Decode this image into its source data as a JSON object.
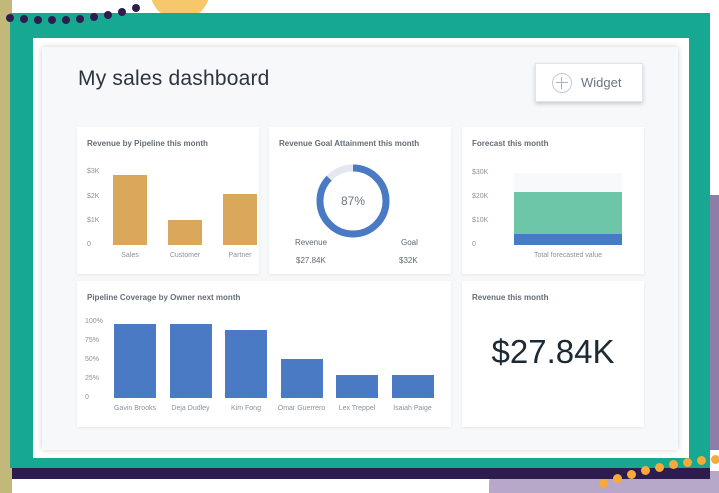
{
  "dashboard": {
    "title": "My sales dashboard",
    "widget_button": "Widget",
    "icons": [
      "plus-circle-icon"
    ]
  },
  "revenue_by_pipeline": {
    "title": "Revenue by Pipeline this month",
    "chart_data": {
      "type": "bar",
      "categories": [
        "Sales",
        "Customer",
        "Partner"
      ],
      "values": [
        2.9,
        1.05,
        2.1
      ],
      "yticks": [
        "$3K",
        "$2K",
        "$1K",
        "0"
      ],
      "ylim": [
        0,
        3.3
      ],
      "color": "#d9a85a"
    }
  },
  "goal_attainment": {
    "title": "Revenue Goal Attainment this month",
    "percent_label": "87%",
    "percent": 87,
    "revenue_label": "Revenue",
    "revenue_value": "$27.84K",
    "goal_label": "Goal",
    "goal_value": "$32K",
    "color": "#4a7ac4"
  },
  "forecast": {
    "title": "Forecast this month",
    "chart_data": {
      "type": "bar",
      "categories": [
        "Total forecasted value"
      ],
      "yticks": [
        "$30K",
        "$20K",
        "$10K",
        "0"
      ],
      "ylim": [
        0,
        30
      ],
      "series": [
        {
          "values": [
            4.5
          ],
          "color": "#4a7ac4"
        },
        {
          "values": [
            17.5
          ],
          "color": "#6ec6a9"
        }
      ]
    }
  },
  "pipeline_coverage": {
    "title": "Pipeline Coverage by Owner next month",
    "chart_data": {
      "type": "bar",
      "categories": [
        "Gavin Brooks",
        "Deja Dudley",
        "Kim Fong",
        "Omar Guerrero",
        "Lex Treppel",
        "Isaiah Paige"
      ],
      "values": [
        98,
        98,
        89,
        51,
        30,
        30
      ],
      "yticks": [
        "100%",
        "75%",
        "50%",
        "25%",
        "0"
      ],
      "ylim": [
        0,
        100
      ],
      "color": "#4a7ac4"
    }
  },
  "revenue_this_month": {
    "title": "Revenue this month",
    "value": "$27.84K"
  }
}
